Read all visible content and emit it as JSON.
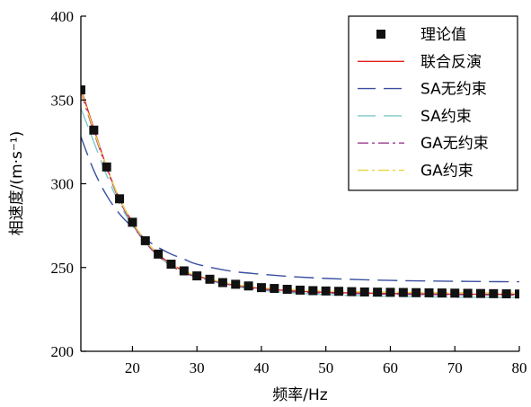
{
  "chart_data": {
    "type": "line",
    "title": "",
    "xlabel": "频率/Hz",
    "ylabel": "相速度/(m·s⁻¹)",
    "xlim": [
      12,
      80
    ],
    "ylim": [
      200,
      400
    ],
    "xticks": [
      20,
      30,
      40,
      50,
      60,
      70,
      80
    ],
    "yticks": [
      200,
      250,
      300,
      350,
      400
    ],
    "grid": false,
    "legend_position": "top-right",
    "series": [
      {
        "name": "理论值",
        "style": "markers",
        "marker": "square",
        "color": "#111111",
        "x": [
          12,
          14,
          16,
          18,
          20,
          22,
          24,
          26,
          28,
          30,
          32,
          34,
          36,
          38,
          40,
          42,
          44,
          46,
          48,
          50,
          52,
          54,
          56,
          58,
          60,
          62,
          64,
          66,
          68,
          70,
          72,
          74,
          76,
          78,
          80
        ],
        "y": [
          356,
          332,
          310,
          291,
          277,
          266,
          258,
          252,
          248,
          245,
          243,
          241,
          240,
          239,
          238,
          237.5,
          237,
          236.5,
          236.2,
          236,
          235.8,
          235.6,
          235.4,
          235.3,
          235.2,
          235.1,
          235,
          234.9,
          234.8,
          234.7,
          234.6,
          234.5,
          234.4,
          234.3,
          234.2
        ]
      },
      {
        "name": "联合反演",
        "style": "solid",
        "color": "#e02020",
        "x": [
          12,
          14,
          16,
          18,
          20,
          22,
          24,
          26,
          28,
          30,
          35,
          40,
          45,
          50,
          55,
          60,
          65,
          70,
          75,
          80
        ],
        "y": [
          357,
          333,
          310,
          291,
          277,
          266,
          258,
          252,
          248,
          245,
          240,
          237.5,
          236,
          235.2,
          234.8,
          234.5,
          234.3,
          234.1,
          234,
          234
        ]
      },
      {
        "name": "SA无约束",
        "style": "dash",
        "color": "#3a4fa0",
        "x": [
          12,
          14,
          16,
          18,
          20,
          22,
          24,
          26,
          28,
          30,
          35,
          40,
          45,
          50,
          55,
          60,
          65,
          70,
          75,
          80
        ],
        "y": [
          328,
          308,
          293,
          282,
          274,
          267,
          262,
          258,
          255,
          252,
          248,
          246,
          244.5,
          243.5,
          242.8,
          242.3,
          242,
          241.8,
          241.6,
          241.5
        ]
      },
      {
        "name": "SA约束",
        "style": "dash",
        "color": "#7fc8c8",
        "x": [
          12,
          14,
          16,
          18,
          20,
          22,
          24,
          26,
          28,
          30,
          35,
          40,
          45,
          50,
          55,
          60,
          65,
          70,
          75,
          80
        ],
        "y": [
          345,
          325,
          305,
          288,
          275,
          265,
          257,
          251,
          247,
          244,
          239.5,
          236.5,
          234.8,
          233.8,
          233.2,
          232.8,
          232.5,
          232.3,
          232.2,
          232.1
        ]
      },
      {
        "name": "GA无约束",
        "style": "dashdot",
        "color": "#9b3a8a",
        "x": [
          12,
          14,
          16,
          18,
          20,
          22,
          24,
          26,
          28,
          30,
          35,
          40,
          45,
          50,
          55,
          60,
          65,
          70,
          75,
          80
        ],
        "y": [
          355,
          331,
          309,
          290,
          276,
          265,
          257,
          251,
          247,
          244.5,
          239.8,
          237,
          235.5,
          234.8,
          234.4,
          234.1,
          233.9,
          233.8,
          233.7,
          233.6
        ]
      },
      {
        "name": "GA约束",
        "style": "dashdot",
        "color": "#e8d84a",
        "x": [
          12,
          14,
          16,
          18,
          20,
          22,
          24,
          26,
          28,
          30,
          35,
          40,
          45,
          50,
          55,
          60,
          65,
          70,
          75,
          80
        ],
        "y": [
          356,
          332,
          310,
          291,
          277,
          266,
          258,
          252,
          248,
          245.3,
          240.5,
          238,
          236.8,
          236,
          235.6,
          235.3,
          235.1,
          235,
          234.9,
          234.8
        ]
      }
    ]
  }
}
